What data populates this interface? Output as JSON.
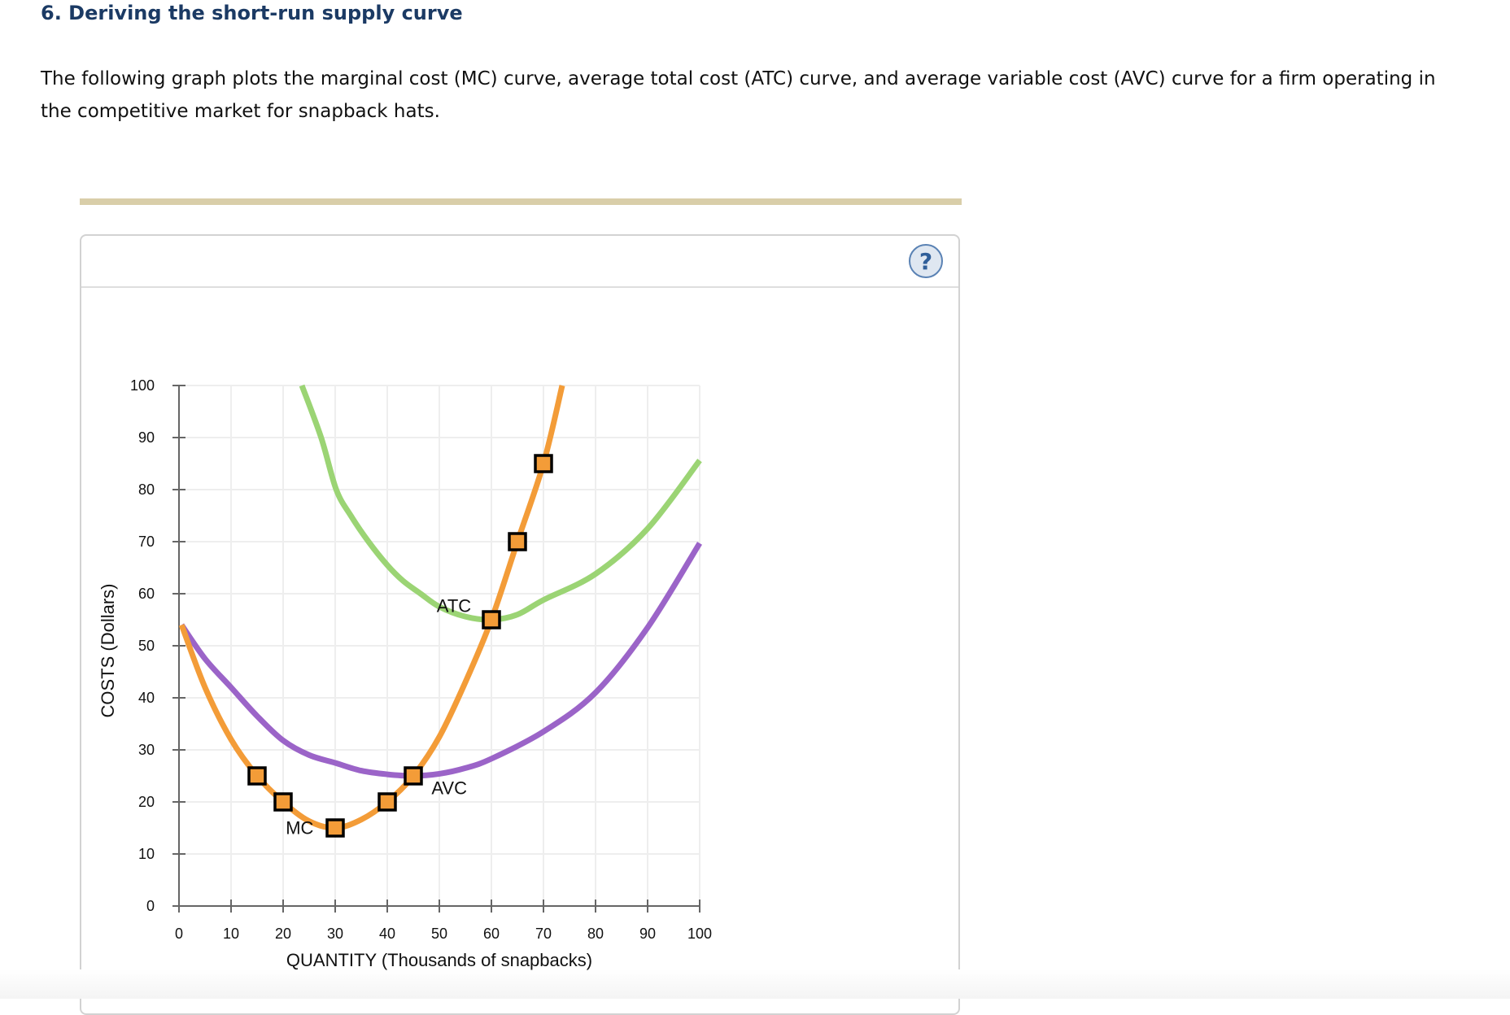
{
  "page": {
    "title": "6. Deriving the short-run supply curve",
    "intro_line1": "The following graph plots the marginal cost (MC) curve, average total cost (ATC) curve, and average variable cost (AVC) curve for a firm operating in",
    "intro_line2": "the competitive market for snapback hats."
  },
  "panel": {
    "help_icon": "question-circle-icon",
    "help_label": "?"
  },
  "colors": {
    "mc": "#f39c38",
    "atc": "#9bd474",
    "avc": "#9b64c8",
    "grid": "#eeeeee",
    "axis": "#666666",
    "title": "#1b3a64",
    "divider": "#d9cea9"
  },
  "chart_data": {
    "type": "line",
    "title": "",
    "xlabel": "QUANTITY (Thousands of snapbacks)",
    "ylabel": "COSTS (Dollars)",
    "xlim": [
      0,
      100
    ],
    "ylim": [
      0,
      100
    ],
    "xticks": [
      0,
      10,
      20,
      30,
      40,
      50,
      60,
      70,
      80,
      90,
      100
    ],
    "yticks": [
      0,
      10,
      20,
      30,
      40,
      50,
      60,
      70,
      80,
      90,
      100
    ],
    "grid": true,
    "legend": "none",
    "series": [
      {
        "name": "MC",
        "label": "MC",
        "color": "#f39c38",
        "x": [
          0.5,
          5,
          10,
          15,
          20,
          25,
          30,
          35,
          40,
          45,
          50,
          55,
          60,
          65,
          70,
          73.6
        ],
        "y": [
          54,
          42,
          32,
          25,
          20,
          16.3,
          15,
          16.6,
          20,
          25,
          32.5,
          43,
          55,
          70,
          85,
          100
        ],
        "markers": [
          {
            "x": 15,
            "y": 25
          },
          {
            "x": 20,
            "y": 20
          },
          {
            "x": 30,
            "y": 15
          },
          {
            "x": 40,
            "y": 20
          },
          {
            "x": 45,
            "y": 25
          },
          {
            "x": 60,
            "y": 55
          },
          {
            "x": 65,
            "y": 70
          },
          {
            "x": 70,
            "y": 85
          }
        ],
        "label_pos": {
          "x": 20.5,
          "y": 13.8
        }
      },
      {
        "name": "ATC",
        "label": "ATC",
        "color": "#9bd474",
        "x": [
          23.6,
          27.3,
          30.2,
          33,
          36.4,
          40,
          43,
          46.4,
          50,
          55,
          60,
          65,
          70,
          80,
          90,
          100
        ],
        "y": [
          100,
          90,
          80,
          75,
          70,
          65.5,
          62.5,
          60,
          57.5,
          55.6,
          55,
          56,
          58.8,
          63.8,
          72.5,
          85.6
        ],
        "label_pos": {
          "x": 49.5,
          "y": 56.5
        }
      },
      {
        "name": "AVC",
        "label": "AVC",
        "color": "#9b64c8",
        "x": [
          0.5,
          5,
          10,
          15,
          20,
          25,
          30,
          35,
          40,
          45,
          50,
          55,
          60,
          70,
          80,
          90,
          100
        ],
        "y": [
          54,
          47.5,
          42,
          36.5,
          31.8,
          29,
          27.5,
          26,
          25.3,
          25,
          25.4,
          26.5,
          28.3,
          33.5,
          41,
          53.5,
          69.7
        ],
        "label_pos": {
          "x": 48.5,
          "y": 21.5
        }
      }
    ]
  }
}
